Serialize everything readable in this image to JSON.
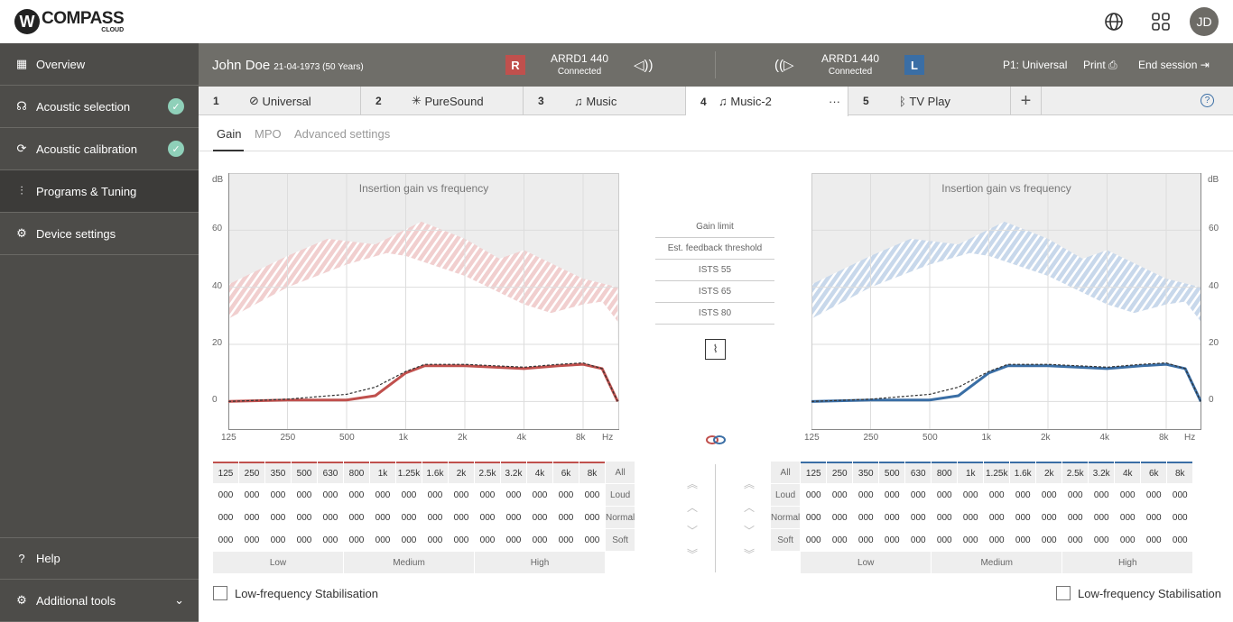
{
  "topbar": {
    "logo_text": "COMPASS",
    "logo_sub": "CLOUD",
    "avatar": "JD",
    "icons": [
      "globe-icon",
      "apps-grid-icon"
    ]
  },
  "sidebar": {
    "items": [
      {
        "label": "Overview",
        "icon": "grid-icon",
        "checked": false
      },
      {
        "label": "Acoustic selection",
        "icon": "ear-icon",
        "checked": true
      },
      {
        "label": "Acoustic calibration",
        "icon": "refresh-icon",
        "checked": true
      },
      {
        "label": "Programs & Tuning",
        "icon": "sliders-icon",
        "checked": false,
        "active": true
      },
      {
        "label": "Device settings",
        "icon": "device-icon",
        "checked": false
      }
    ],
    "bottom": [
      {
        "label": "Help",
        "icon": "question-icon"
      },
      {
        "label": "Additional tools",
        "icon": "gear-icon"
      }
    ]
  },
  "header": {
    "patient": "John Doe",
    "dob": "21-04-1973 (50 Years)",
    "right_device": {
      "side": "R",
      "model": "ARRD1 440",
      "status": "Connected",
      "color": "#c0504d"
    },
    "left_device": {
      "side": "L",
      "model": "ARRD1 440",
      "status": "Connected",
      "color": "#3a6ea5"
    },
    "program": "P1: Universal",
    "print": "Print",
    "end_session": "End session"
  },
  "tabs": [
    {
      "num": "1",
      "label": "Universal",
      "icon": "planet-icon"
    },
    {
      "num": "2",
      "label": "PureSound",
      "icon": "sparkle-icon"
    },
    {
      "num": "3",
      "label": "Music",
      "icon": "music-note-icon"
    },
    {
      "num": "4",
      "label": "Music-2",
      "icon": "music-note-icon",
      "active": true,
      "more": "···"
    },
    {
      "num": "5",
      "label": "TV Play",
      "icon": "bluetooth-icon"
    }
  ],
  "subtabs": [
    "Gain",
    "MPO",
    "Advanced settings"
  ],
  "chart_common": {
    "title": "Insertion gain vs frequency",
    "ylabel": "dB",
    "yticks": [
      "60",
      "40",
      "20",
      "0"
    ],
    "xticks": [
      "125",
      "250",
      "500",
      "1k",
      "2k",
      "4k",
      "8k"
    ],
    "xunit": "Hz"
  },
  "legend": [
    "Gain limit",
    "Est. feedback threshold",
    "ISTS 55",
    "ISTS 65",
    "ISTS 80"
  ],
  "chart_data": [
    {
      "type": "line",
      "side": "right",
      "title": "Insertion gain vs frequency",
      "ylabel": "dB",
      "xlabel": "Hz",
      "xscale": "log",
      "ylim": [
        -10,
        80
      ],
      "color": "#c0504d",
      "gain": [
        [
          125,
          0
        ],
        [
          250,
          0.5
        ],
        [
          500,
          0.5
        ],
        [
          700,
          2
        ],
        [
          1000,
          10
        ],
        [
          1250,
          12.5
        ],
        [
          2000,
          12.5
        ],
        [
          4000,
          11.5
        ],
        [
          6000,
          12.5
        ],
        [
          8000,
          13
        ],
        [
          10000,
          11.5
        ],
        [
          12000,
          0
        ]
      ],
      "target": [
        [
          125,
          0
        ],
        [
          250,
          0.8
        ],
        [
          500,
          2.5
        ],
        [
          700,
          5
        ],
        [
          1000,
          10.5
        ],
        [
          1250,
          13
        ],
        [
          2000,
          13
        ],
        [
          4000,
          12
        ],
        [
          6000,
          13
        ],
        [
          8000,
          13.5
        ],
        [
          10000,
          11.5
        ],
        [
          12000,
          0
        ]
      ],
      "band_upper": [
        [
          125,
          41
        ],
        [
          250,
          51
        ],
        [
          400,
          57
        ],
        [
          700,
          55
        ],
        [
          1200,
          63
        ],
        [
          2000,
          57
        ],
        [
          3000,
          50
        ],
        [
          4000,
          53
        ],
        [
          8000,
          43
        ],
        [
          12000,
          40
        ]
      ],
      "band_lower": [
        [
          125,
          29
        ],
        [
          250,
          40
        ],
        [
          500,
          48
        ],
        [
          800,
          52
        ],
        [
          1000,
          51
        ],
        [
          2000,
          44
        ],
        [
          4000,
          34
        ],
        [
          5500,
          31
        ],
        [
          8000,
          34
        ],
        [
          10000,
          35
        ],
        [
          12000,
          28
        ]
      ]
    },
    {
      "type": "line",
      "side": "left",
      "title": "Insertion gain vs frequency",
      "ylabel": "dB",
      "xlabel": "Hz",
      "xscale": "log",
      "ylim": [
        -10,
        80
      ],
      "color": "#3a6ea5",
      "gain": [
        [
          125,
          0
        ],
        [
          250,
          0.5
        ],
        [
          500,
          0.5
        ],
        [
          700,
          2
        ],
        [
          1000,
          10
        ],
        [
          1250,
          12.5
        ],
        [
          2000,
          12.5
        ],
        [
          4000,
          11.5
        ],
        [
          6000,
          12.5
        ],
        [
          8000,
          13
        ],
        [
          10000,
          11.5
        ],
        [
          12000,
          0
        ]
      ],
      "target": [
        [
          125,
          0
        ],
        [
          250,
          0.8
        ],
        [
          500,
          2.5
        ],
        [
          700,
          5
        ],
        [
          1000,
          10.5
        ],
        [
          1250,
          13
        ],
        [
          2000,
          13
        ],
        [
          4000,
          12
        ],
        [
          6000,
          13
        ],
        [
          8000,
          13.5
        ],
        [
          10000,
          11.5
        ],
        [
          12000,
          0
        ]
      ],
      "band_upper": [
        [
          125,
          41
        ],
        [
          250,
          51
        ],
        [
          400,
          57
        ],
        [
          700,
          55
        ],
        [
          1200,
          63
        ],
        [
          2000,
          57
        ],
        [
          3000,
          50
        ],
        [
          4000,
          53
        ],
        [
          8000,
          43
        ],
        [
          12000,
          40
        ]
      ],
      "band_lower": [
        [
          125,
          29
        ],
        [
          250,
          40
        ],
        [
          500,
          48
        ],
        [
          800,
          52
        ],
        [
          1000,
          51
        ],
        [
          2000,
          44
        ],
        [
          4000,
          34
        ],
        [
          5500,
          31
        ],
        [
          8000,
          34
        ],
        [
          10000,
          35
        ],
        [
          12000,
          28
        ]
      ]
    }
  ],
  "gain_table": {
    "freqs": [
      "125",
      "250",
      "350",
      "500",
      "630",
      "800",
      "1k",
      "1.25k",
      "1.6k",
      "2k",
      "2.5k",
      "3.2k",
      "4k",
      "6k",
      "8k"
    ],
    "rows": [
      {
        "label": "Loud",
        "values": [
          "000",
          "000",
          "000",
          "000",
          "000",
          "000",
          "000",
          "000",
          "000",
          "000",
          "000",
          "000",
          "000",
          "000",
          "000"
        ]
      },
      {
        "label": "Normal",
        "values": [
          "000",
          "000",
          "000",
          "000",
          "000",
          "000",
          "000",
          "000",
          "000",
          "000",
          "000",
          "000",
          "000",
          "000",
          "000"
        ]
      },
      {
        "label": "Soft",
        "values": [
          "000",
          "000",
          "000",
          "000",
          "000",
          "000",
          "000",
          "000",
          "000",
          "000",
          "000",
          "000",
          "000",
          "000",
          "000"
        ]
      }
    ],
    "all": "All",
    "bands": [
      "Low",
      "Medium",
      "High"
    ]
  },
  "lf_stabilisation": "Low-frequency Stabilisation"
}
